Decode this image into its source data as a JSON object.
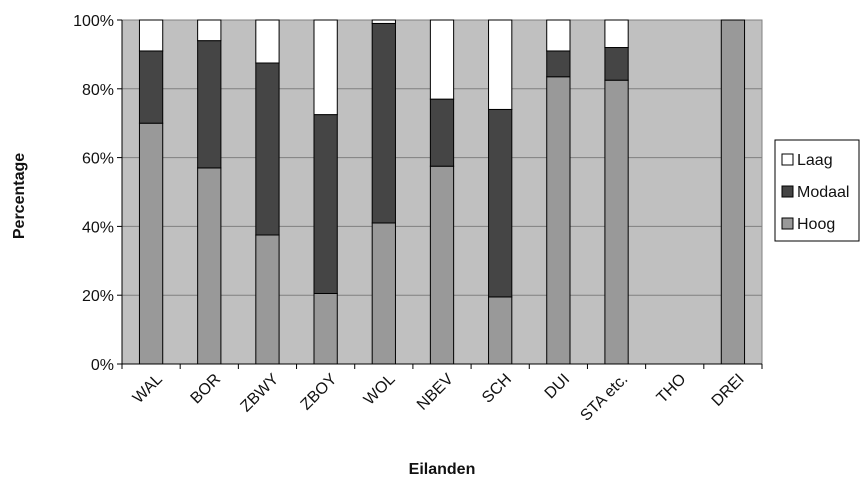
{
  "chart_data": {
    "type": "bar",
    "stacked": true,
    "percent": true,
    "xlabel": "Eilanden",
    "ylabel": "Percentage",
    "ylim": [
      0,
      100
    ],
    "y_ticks": [
      "0%",
      "20%",
      "40%",
      "60%",
      "80%",
      "100%"
    ],
    "categories": [
      "WAL",
      "BOR",
      "ZBWY",
      "ZBOY",
      "WOL",
      "NBEV",
      "SCH",
      "DUI",
      "STA etc.",
      "THO",
      "DREI"
    ],
    "series": [
      {
        "name": "Hoog",
        "color": "#999999",
        "values": [
          70,
          57,
          37.5,
          20.5,
          41,
          57.5,
          19.5,
          83.5,
          82.5,
          0,
          100
        ]
      },
      {
        "name": "Modaal",
        "color": "#454545",
        "values": [
          21,
          37,
          50,
          52,
          58,
          19.5,
          54.5,
          7.5,
          9.5,
          0,
          0
        ]
      },
      {
        "name": "Laag",
        "color": "#ffffff",
        "values": [
          9,
          6,
          12.5,
          27.5,
          1,
          23,
          26,
          9,
          8,
          0,
          0
        ]
      }
    ],
    "legend_position": "right",
    "legend_order": [
      "Laag",
      "Modaal",
      "Hoog"
    ],
    "grid": true,
    "plot_background": "#c0c0c0",
    "gridline_color": "#808080"
  }
}
